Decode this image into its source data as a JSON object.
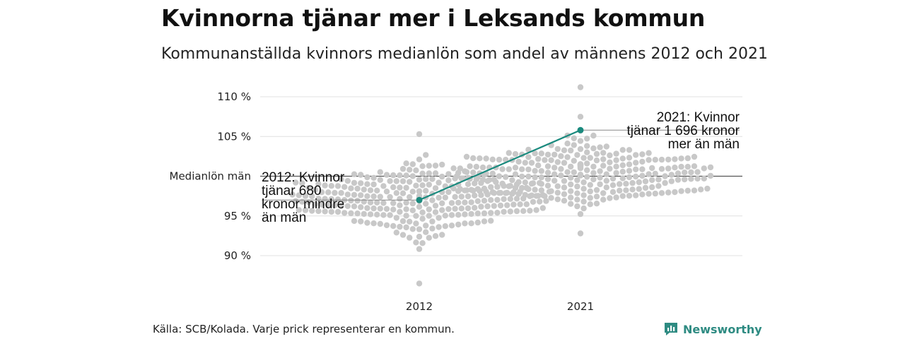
{
  "title": "Kvinnorna tjänar mer i Leksands kommun",
  "subtitle": "Kommunanställda kvinnors medianlön som andel av männens 2012 och 2021",
  "source": "Källa: SCB/Kolada. Varje prick representerar en kommun.",
  "brand": "Newsworthy",
  "colors": {
    "highlight": "#1a8a7e",
    "dots": "#c8c8c8",
    "grid": "#e0e0e0",
    "reference": "#555555"
  },
  "chart_data": {
    "type": "scatter",
    "categories": [
      "2012",
      "2021"
    ],
    "y_ticks": [
      {
        "value": 110,
        "label": "110 %"
      },
      {
        "value": 105,
        "label": "105 %"
      },
      {
        "value": 100,
        "label": "Medianlön män"
      },
      {
        "value": 95,
        "label": "95 %"
      },
      {
        "value": 90,
        "label": "90 %"
      }
    ],
    "ylim": [
      86,
      111.5
    ],
    "reference_line": {
      "value": 100
    },
    "highlight": {
      "name": "Leksand",
      "points": [
        {
          "x": "2012",
          "y": 97.0
        },
        {
          "x": "2021",
          "y": 105.8
        }
      ]
    },
    "annotations": [
      {
        "x": "2012",
        "y": 97.0,
        "lines": [
          "2012: Kvinnor",
          "tjänar 680",
          "kronor mindre",
          "än män"
        ]
      },
      {
        "x": "2021",
        "y": 105.8,
        "lines": [
          "2021: Kvinnor",
          "tjänar 1 696 kronor",
          "mer än män"
        ]
      }
    ],
    "distributions": [
      {
        "x": "2012",
        "n": 290,
        "min": 86.5,
        "max": 105.3,
        "center": 97.0,
        "sd": 2.3
      },
      {
        "x": "2021",
        "n": 290,
        "min": 92.8,
        "max": 111.2,
        "center": 100.5,
        "sd": 2.0
      }
    ]
  }
}
